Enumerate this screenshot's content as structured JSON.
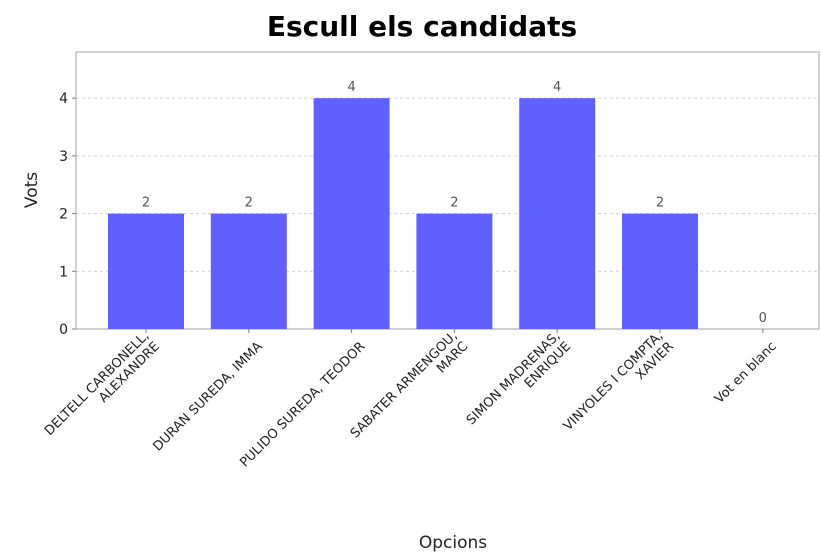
{
  "chart_data": {
    "type": "bar",
    "title": "Escull els candidats",
    "xlabel": "Opcions",
    "ylabel": "Vots",
    "categories": [
      [
        "DELTELL CARBONELL,",
        "ALEXANDRE"
      ],
      [
        "DURAN SUREDA, IMMA"
      ],
      [
        "PULIDO SUREDA, TEODOR"
      ],
      [
        "SABATER ARMENGOU,",
        "MARC"
      ],
      [
        "SIMON MADRENAS,",
        "ENRIQUE"
      ],
      [
        "VINYOLES I COMPTA,",
        "XAVIER"
      ],
      [
        "Vot en blanc"
      ]
    ],
    "values": [
      2,
      2,
      4,
      2,
      4,
      2,
      0
    ],
    "yticks": [
      0,
      1,
      2,
      3,
      4
    ],
    "ylim": [
      0,
      4.8
    ],
    "grid": true,
    "bar_color": "#6060ff"
  }
}
